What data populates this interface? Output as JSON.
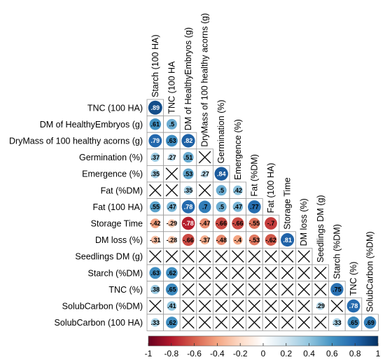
{
  "chart_data": {
    "type": "heatmap",
    "subtype": "correlation-lower-triangle",
    "variables": [
      "Starch (100 HA)",
      "TNC (100 HA)",
      "DM of HealthyEmbryos (g)",
      "DryMass of 100 healthy acorns (g)",
      "Germination (%)",
      "Emergence (%)",
      "Fat (%DM)",
      "Fat (100 HA)",
      "Storage Time",
      "DM loss (%)",
      "Seedlings DM (g)",
      "Starch (%DM)",
      "TNC (%)",
      "SolubCarbon (%DM)",
      "SolubCarbon (100 HA)"
    ],
    "row_labels": [
      "TNC (100 HA)",
      "DM of HealthyEmbryos (g)",
      "DryMass of 100 healthy acorns (g)",
      "Germination (%)",
      "Emergence (%)",
      "Fat (%DM)",
      "Fat (100 HA)",
      "Storage Time",
      "DM loss (%)",
      "Seedlings DM (g)",
      "Starch (%DM)",
      "TNC (%)",
      "SolubCarbon (%DM)",
      "SolubCarbon (100 HA)"
    ],
    "col_labels": [
      "Starch (100 HA)",
      "TNC (100 HA",
      "DM of HealthyEmbryos (g)",
      "DryMass of 100 healthy acorns (g)",
      "Germination (%)",
      "Emergence (%)",
      "Fat (%DM)",
      "Fat (100 HA)",
      "Storage Time",
      "DM loss (%)",
      "Seedlings DM (g)",
      "Starch (%DM)",
      "TNC (%)",
      "SolubCarbon (%DM)"
    ],
    "note": "matrix[i][j] = correlation of row variable i with column variable j (lower triangle); number = significant (labeled), null = marked with a cross",
    "matrix": [
      [
        0.89
      ],
      [
        0.61,
        0.5
      ],
      [
        0.79,
        0.63,
        0.82
      ],
      [
        0.37,
        0.27,
        0.51,
        null
      ],
      [
        0.35,
        null,
        0.53,
        0.27,
        0.84
      ],
      [
        null,
        null,
        0.35,
        null,
        0.5,
        0.42
      ],
      [
        0.55,
        0.47,
        0.78,
        0.7,
        0.5,
        0.47,
        0.77
      ],
      [
        -0.42,
        -0.29,
        -0.78,
        -0.47,
        -0.66,
        -0.66,
        -0.55,
        -0.7
      ],
      [
        -0.31,
        -0.28,
        -0.66,
        -0.37,
        -0.48,
        -0.4,
        -0.53,
        -0.62,
        0.81
      ],
      [
        null,
        null,
        null,
        null,
        null,
        null,
        null,
        null,
        null,
        null
      ],
      [
        0.63,
        0.62,
        null,
        null,
        null,
        null,
        null,
        null,
        null,
        null,
        null
      ],
      [
        0.38,
        0.65,
        null,
        null,
        null,
        null,
        null,
        null,
        null,
        null,
        null,
        0.75
      ],
      [
        null,
        0.41,
        null,
        null,
        null,
        null,
        null,
        null,
        null,
        null,
        0.29,
        null,
        0.78
      ],
      [
        0.33,
        0.62,
        null,
        null,
        null,
        null,
        null,
        null,
        null,
        null,
        null,
        0.33,
        0.65,
        0.69
      ]
    ],
    "colorbar": {
      "range": [
        -1,
        1
      ],
      "ticks": [
        "-1",
        "-0.8",
        "-0.6",
        "-0.4",
        "-0.2",
        "0",
        "0.2",
        "0.4",
        "0.6",
        "0.8",
        "1"
      ],
      "colors": [
        "#67001f",
        "#b2182b",
        "#d6604d",
        "#f4a582",
        "#fddbc7",
        "#ffffff",
        "#d1e5f0",
        "#92c5de",
        "#4393c3",
        "#2166ac",
        "#053061"
      ]
    },
    "legend_placement": "bottom"
  }
}
